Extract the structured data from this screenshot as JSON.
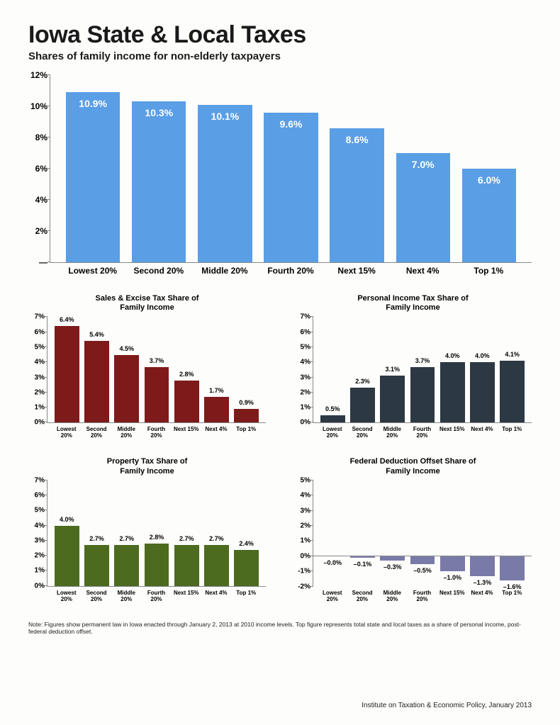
{
  "title": "Iowa State & Local Taxes",
  "subtitle": "Shares of family income for non-elderly taxpayers",
  "categories": [
    "Lowest 20%",
    "Second 20%",
    "Middle 20%",
    "Fourth 20%",
    "Next 15%",
    "Next 4%",
    "Top 1%"
  ],
  "main_chart": {
    "values": [
      10.9,
      10.3,
      10.1,
      9.6,
      8.6,
      7.0,
      6.0
    ],
    "labels": [
      "10.9%",
      "10.3%",
      "10.1%",
      "9.6%",
      "8.6%",
      "7.0%",
      "6.0%"
    ],
    "bar_color": "#5a9ee6",
    "ymax": 12,
    "yticks": [
      0,
      2,
      4,
      6,
      8,
      10,
      12
    ],
    "ytick_labels": [
      "—",
      "2%",
      "4%",
      "6%",
      "8%",
      "10%",
      "12%"
    ]
  },
  "small_charts": [
    {
      "title": "Sales & Excise Tax Share of\nFamily Income",
      "values": [
        6.4,
        5.4,
        4.5,
        3.7,
        2.8,
        1.7,
        0.9
      ],
      "labels": [
        "6.4%",
        "5.4%",
        "4.5%",
        "3.7%",
        "2.8%",
        "1.7%",
        "0.9%"
      ],
      "bar_color": "#7e1a1a",
      "ymax": 7,
      "ymin": 0,
      "yticks": [
        0,
        1,
        2,
        3,
        4,
        5,
        6,
        7
      ],
      "ytick_labels": [
        "0%",
        "1%",
        "2%",
        "3%",
        "4%",
        "5%",
        "6%",
        "7%"
      ],
      "neg": false
    },
    {
      "title": "Personal Income Tax Share of\nFamily Income",
      "values": [
        0.5,
        2.3,
        3.1,
        3.7,
        4.0,
        4.0,
        4.1
      ],
      "labels": [
        "0.5%",
        "2.3%",
        "3.1%",
        "3.7%",
        "4.0%",
        "4.0%",
        "4.1%"
      ],
      "bar_color": "#2c3844",
      "ymax": 7,
      "ymin": 0,
      "yticks": [
        0,
        1,
        2,
        3,
        4,
        5,
        6,
        7
      ],
      "ytick_labels": [
        "0%",
        "1%",
        "2%",
        "3%",
        "4%",
        "5%",
        "6%",
        "7%"
      ],
      "neg": false
    },
    {
      "title": "Property Tax Share of\nFamily Income",
      "values": [
        4.0,
        2.7,
        2.7,
        2.8,
        2.7,
        2.7,
        2.4
      ],
      "labels": [
        "4.0%",
        "2.7%",
        "2.7%",
        "2.8%",
        "2.7%",
        "2.7%",
        "2.4%"
      ],
      "bar_color": "#4d6b1f",
      "ymax": 7,
      "ymin": 0,
      "yticks": [
        0,
        1,
        2,
        3,
        4,
        5,
        6,
        7
      ],
      "ytick_labels": [
        "0%",
        "1%",
        "2%",
        "3%",
        "4%",
        "5%",
        "6%",
        "7%"
      ],
      "neg": false
    },
    {
      "title": "Federal Deduction Offset Share of\nFamily Income",
      "values": [
        -0.0,
        -0.1,
        -0.3,
        -0.5,
        -1.0,
        -1.3,
        -1.6
      ],
      "labels": [
        "–0.0%",
        "–0.1%",
        "–0.3%",
        "–0.5%",
        "–1.0%",
        "–1.3%",
        "–1.6%"
      ],
      "bar_color": "#7a7aa8",
      "ymax": 5,
      "ymin": -2,
      "yticks": [
        -2,
        -1,
        0,
        1,
        2,
        3,
        4,
        5
      ],
      "ytick_labels": [
        "-2%",
        "-1%",
        "0%",
        "1%",
        "2%",
        "3%",
        "4%",
        "5%"
      ],
      "neg": true
    }
  ],
  "note": "Note: Figures show permanent law in Iowa enacted through January 2, 2013 at 2010 income levels.  Top figure represents total state and local taxes as a share of personal income, post- federal deduction offset.",
  "attribution": "Institute on Taxation & Economic Policy, January 2013"
}
